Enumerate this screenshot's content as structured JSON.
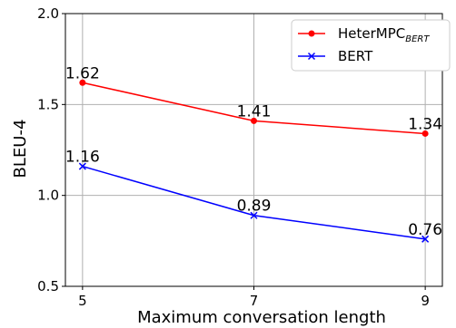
{
  "chart_data": {
    "type": "line",
    "x": [
      5,
      7,
      9
    ],
    "xlabel": "Maximum conversation length",
    "ylabel": "BLEU-4",
    "xlim": [
      4.8,
      9.2
    ],
    "ylim": [
      0.5,
      2.0
    ],
    "xticks": [
      "5",
      "7",
      "9"
    ],
    "yticks": [
      "0.5",
      "1.0",
      "1.5",
      "2.0"
    ],
    "grid": true,
    "legend_position": "top-right",
    "series": [
      {
        "name_main": "HeterMPC",
        "name_sub": "BERT",
        "values": [
          1.62,
          1.41,
          1.34
        ],
        "labels": [
          "1.62",
          "1.41",
          "1.34"
        ],
        "color": "#ff0000",
        "marker": "circle"
      },
      {
        "name_main": "BERT",
        "name_sub": "",
        "values": [
          1.16,
          0.89,
          0.76
        ],
        "labels": [
          "1.16",
          "0.89",
          "0.76"
        ],
        "color": "#0000ff",
        "marker": "x"
      }
    ]
  }
}
